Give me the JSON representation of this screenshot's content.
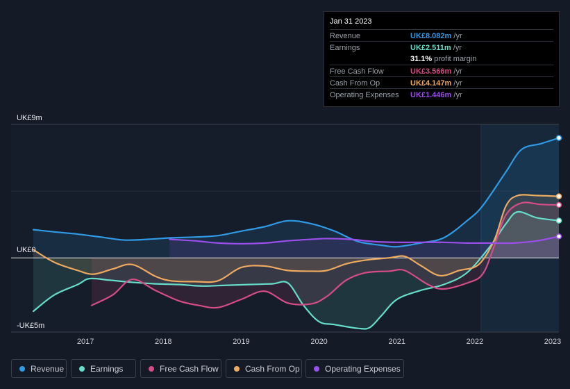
{
  "tooltip": {
    "date": "Jan 31 2023",
    "rows": [
      {
        "label": "Revenue",
        "value": "UK£8.082m",
        "unit": "/yr",
        "color": "#2f9be6"
      },
      {
        "label": "Earnings",
        "value": "UK£2.511m",
        "unit": "/yr",
        "color": "#65ddc9"
      },
      {
        "label": "",
        "value": "31.1%",
        "unit": "profit margin",
        "color": "#ffffff"
      },
      {
        "label": "Free Cash Flow",
        "value": "UK£3.566m",
        "unit": "/yr",
        "color": "#d64c86"
      },
      {
        "label": "Cash From Op",
        "value": "UK£4.147m",
        "unit": "/yr",
        "color": "#eeaa5f"
      },
      {
        "label": "Operating Expenses",
        "value": "UK£1.446m",
        "unit": "/yr",
        "color": "#9b4fea"
      }
    ]
  },
  "legend": [
    {
      "label": "Revenue",
      "color": "#2f9be6"
    },
    {
      "label": "Earnings",
      "color": "#65ddc9"
    },
    {
      "label": "Free Cash Flow",
      "color": "#d64c86"
    },
    {
      "label": "Cash From Op",
      "color": "#eeaa5f"
    },
    {
      "label": "Operating Expenses",
      "color": "#9b4fea"
    }
  ],
  "chart_data": {
    "type": "line",
    "title": "",
    "xlabel": "",
    "ylabel": "",
    "x_ticks": [
      "2017",
      "2018",
      "2019",
      "2020",
      "2021",
      "2022",
      "2023"
    ],
    "x_tick_values": [
      2017,
      2018,
      2019,
      2020,
      2021,
      2022,
      2023
    ],
    "y_labels": [
      "UK£9m",
      "UK£0",
      "-UK£5m"
    ],
    "ylim": [
      -5,
      9
    ],
    "xlim": [
      2016.33,
      2023.08
    ],
    "highlight_from": 2022.08,
    "series": [
      {
        "name": "Revenue",
        "color": "#2f9be6",
        "x": [
          2016.33,
          2016.6,
          2016.9,
          2017.2,
          2017.5,
          2017.8,
          2018.1,
          2018.4,
          2018.7,
          2019.0,
          2019.3,
          2019.6,
          2019.9,
          2020.2,
          2020.5,
          2020.8,
          2021.0,
          2021.3,
          2021.6,
          2021.9,
          2022.1,
          2022.4,
          2022.6,
          2022.85,
          2023.08
        ],
        "y": [
          1.9,
          1.75,
          1.6,
          1.4,
          1.2,
          1.25,
          1.35,
          1.4,
          1.5,
          1.8,
          2.1,
          2.5,
          2.3,
          1.8,
          1.1,
          0.85,
          0.75,
          1.0,
          1.35,
          2.5,
          3.5,
          5.8,
          7.3,
          7.7,
          8.082
        ]
      },
      {
        "name": "Earnings",
        "color": "#65ddc9",
        "x": [
          2016.33,
          2016.6,
          2016.9,
          2017.05,
          2017.3,
          2017.6,
          2017.9,
          2018.2,
          2018.5,
          2018.8,
          2019.1,
          2019.4,
          2019.6,
          2019.8,
          2020.0,
          2020.2,
          2020.5,
          2020.65,
          2020.8,
          2021.0,
          2021.3,
          2021.6,
          2021.9,
          2022.2,
          2022.4,
          2022.55,
          2022.8,
          2023.08
        ],
        "y": [
          -3.6,
          -2.5,
          -1.8,
          -1.4,
          -1.5,
          -1.65,
          -1.75,
          -1.8,
          -1.9,
          -1.85,
          -1.8,
          -1.75,
          -1.7,
          -3.2,
          -4.3,
          -4.5,
          -4.75,
          -4.7,
          -3.9,
          -2.8,
          -2.2,
          -1.8,
          -1.0,
          0.8,
          2.3,
          3.1,
          2.7,
          2.511
        ]
      },
      {
        "name": "Free Cash Flow",
        "color": "#d64c86",
        "x": [
          2017.08,
          2017.35,
          2017.6,
          2017.9,
          2018.2,
          2018.45,
          2018.7,
          2019.0,
          2019.3,
          2019.6,
          2019.9,
          2020.1,
          2020.35,
          2020.6,
          2020.9,
          2021.1,
          2021.4,
          2021.6,
          2021.9,
          2022.1,
          2022.25,
          2022.4,
          2022.6,
          2022.85,
          2023.08
        ],
        "y": [
          -3.2,
          -2.5,
          -1.45,
          -2.2,
          -2.9,
          -3.2,
          -3.35,
          -2.8,
          -2.25,
          -3.05,
          -3.1,
          -2.6,
          -1.5,
          -1.0,
          -0.9,
          -0.85,
          -1.8,
          -2.1,
          -1.7,
          -1.1,
          0.8,
          2.9,
          3.7,
          3.6,
          3.566
        ]
      },
      {
        "name": "Cash From Op",
        "color": "#eeaa5f",
        "x": [
          2016.33,
          2016.6,
          2016.9,
          2017.1,
          2017.35,
          2017.6,
          2017.9,
          2018.1,
          2018.4,
          2018.7,
          2019.0,
          2019.3,
          2019.6,
          2019.9,
          2020.1,
          2020.35,
          2020.6,
          2020.9,
          2021.1,
          2021.3,
          2021.55,
          2021.8,
          2022.05,
          2022.25,
          2022.4,
          2022.55,
          2022.8,
          2023.08
        ],
        "y": [
          0.55,
          -0.3,
          -0.85,
          -1.1,
          -0.75,
          -0.45,
          -1.25,
          -1.55,
          -1.6,
          -1.55,
          -0.65,
          -0.55,
          -0.85,
          -0.9,
          -0.85,
          -0.4,
          -0.15,
          0.0,
          0.1,
          -0.5,
          -1.2,
          -0.85,
          -0.45,
          1.2,
          3.5,
          4.2,
          4.2,
          4.147
        ]
      },
      {
        "name": "Operating Expenses",
        "color": "#9b4fea",
        "x": [
          2018.08,
          2018.4,
          2018.7,
          2019.0,
          2019.3,
          2019.6,
          2019.9,
          2020.1,
          2020.4,
          2020.7,
          2021.0,
          2021.3,
          2021.6,
          2021.9,
          2022.2,
          2022.5,
          2022.8,
          2023.08
        ],
        "y": [
          1.25,
          1.15,
          1.0,
          0.95,
          1.0,
          1.15,
          1.25,
          1.3,
          1.25,
          1.1,
          1.05,
          1.05,
          1.05,
          1.0,
          1.0,
          1.0,
          1.15,
          1.446
        ]
      }
    ]
  }
}
